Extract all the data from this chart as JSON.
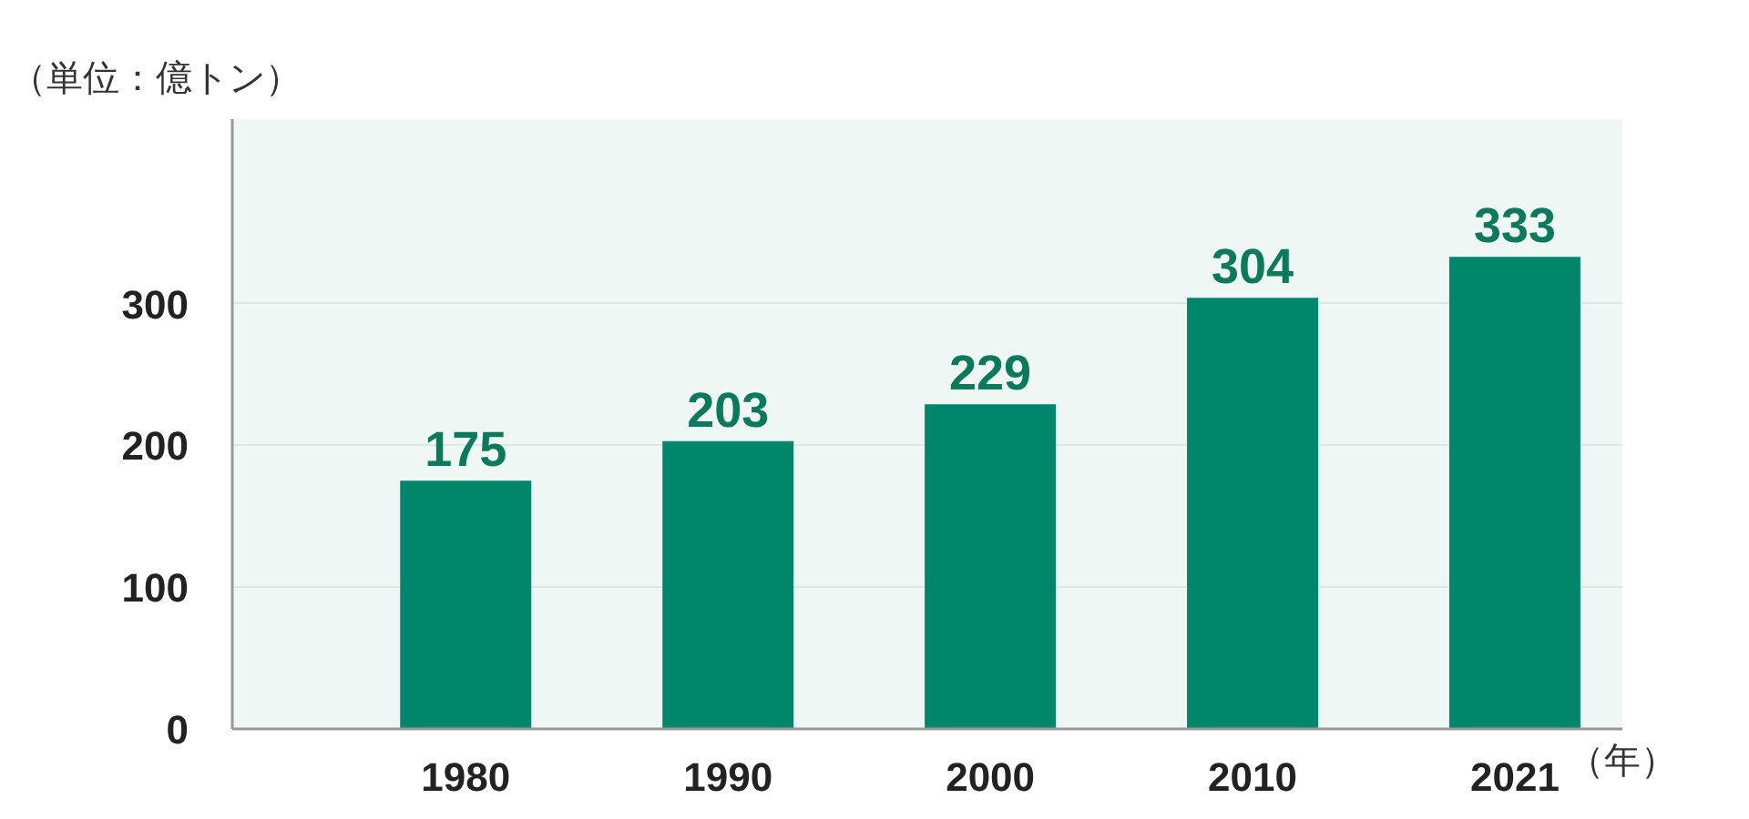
{
  "chart_data": {
    "type": "bar",
    "ylabel": "（単位：億トン）",
    "xlabel": "（年）",
    "categories": [
      "1980",
      "1990",
      "2000",
      "2010",
      "2021"
    ],
    "values": [
      175,
      203,
      229,
      304,
      333
    ],
    "color": "#00866a",
    "ylim": [
      0,
      430
    ],
    "yticks": [
      0,
      100,
      200,
      300
    ],
    "grid": "y",
    "data_labels": true
  }
}
